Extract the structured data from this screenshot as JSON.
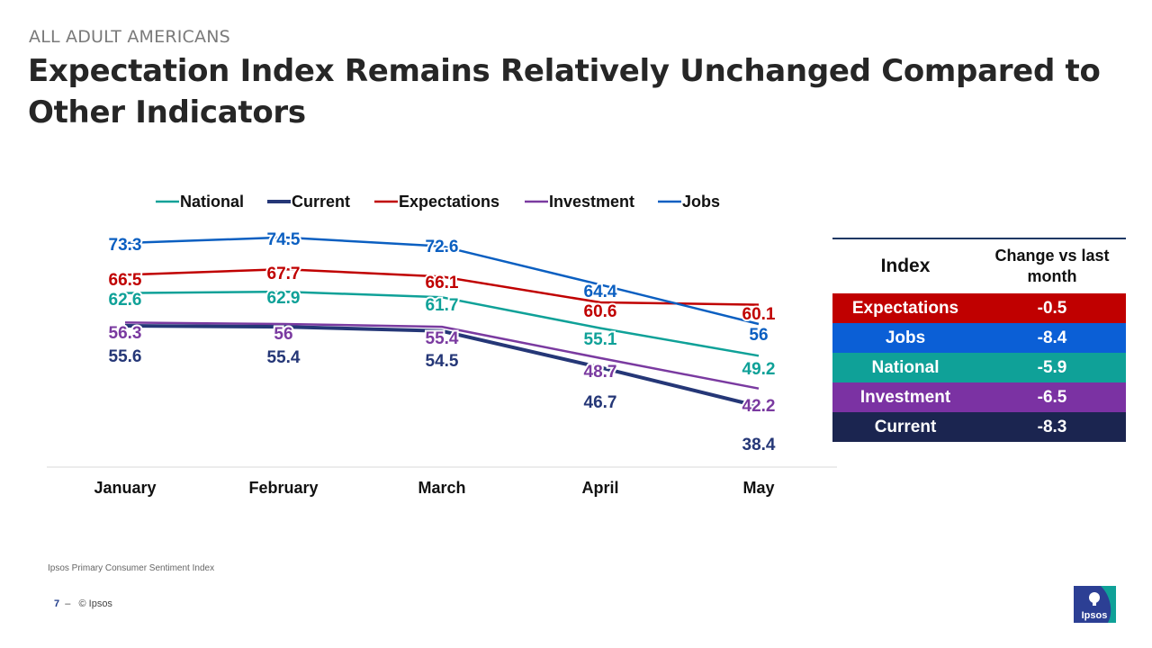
{
  "header": {
    "kicker": "ALL ADULT AMERICANS",
    "title": "Expectation Index Remains Relatively Unchanged Compared  to Other Indicators"
  },
  "chart_data": {
    "type": "line",
    "categories": [
      "January",
      "February",
      "March",
      "April",
      "May"
    ],
    "legend_position": "top",
    "grid": false,
    "ylim": [
      35,
      78
    ],
    "series": [
      {
        "name": "National",
        "color": "#0fa198",
        "values": [
          62.6,
          62.9,
          61.7,
          55.1,
          49.2
        ],
        "labels": [
          "62.6",
          "62.9",
          "61.7",
          "55.1",
          "49.2"
        ]
      },
      {
        "name": "Current",
        "color": "#253777",
        "values": [
          55.6,
          55.4,
          54.5,
          46.7,
          38.4
        ],
        "labels": [
          "55.6",
          "55.4",
          "54.5",
          "46.7",
          "38.4"
        ]
      },
      {
        "name": "Expectations",
        "color": "#c00000",
        "values": [
          66.5,
          67.7,
          66.1,
          60.6,
          60.1
        ],
        "labels": [
          "66.5",
          "67.7",
          "66.1",
          "60.6",
          "60.1"
        ]
      },
      {
        "name": "Investment",
        "color": "#7a3aa0",
        "values": [
          56.3,
          56,
          55.4,
          48.7,
          42.2
        ],
        "labels": [
          "56.3",
          "56",
          "55.4",
          "48.7",
          "42.2"
        ]
      },
      {
        "name": "Jobs",
        "color": "#0b5fc1",
        "values": [
          73.3,
          74.5,
          72.6,
          64.4,
          56
        ],
        "labels": [
          "73.3",
          "74.5",
          "72.6",
          "64.4",
          "56"
        ]
      }
    ]
  },
  "change_table": {
    "col1": "Index",
    "col2": "Change vs last month",
    "rows": [
      {
        "index": "Expectations",
        "change": "-0.5",
        "color": "#c00000"
      },
      {
        "index": "Jobs",
        "change": "-8.4",
        "color": "#0b5fd6"
      },
      {
        "index": "National",
        "change": "-5.9",
        "color": "#0fa198"
      },
      {
        "index": "Investment",
        "change": "-6.5",
        "color": "#7b32a3"
      },
      {
        "index": "Current",
        "change": "-8.3",
        "color": "#1b2550"
      }
    ]
  },
  "footer": {
    "source": "Ipsos Primary Consumer Sentiment Index",
    "page": "7",
    "dash": "–",
    "copyright": "© Ipsos",
    "logo_text": "Ipsos"
  }
}
